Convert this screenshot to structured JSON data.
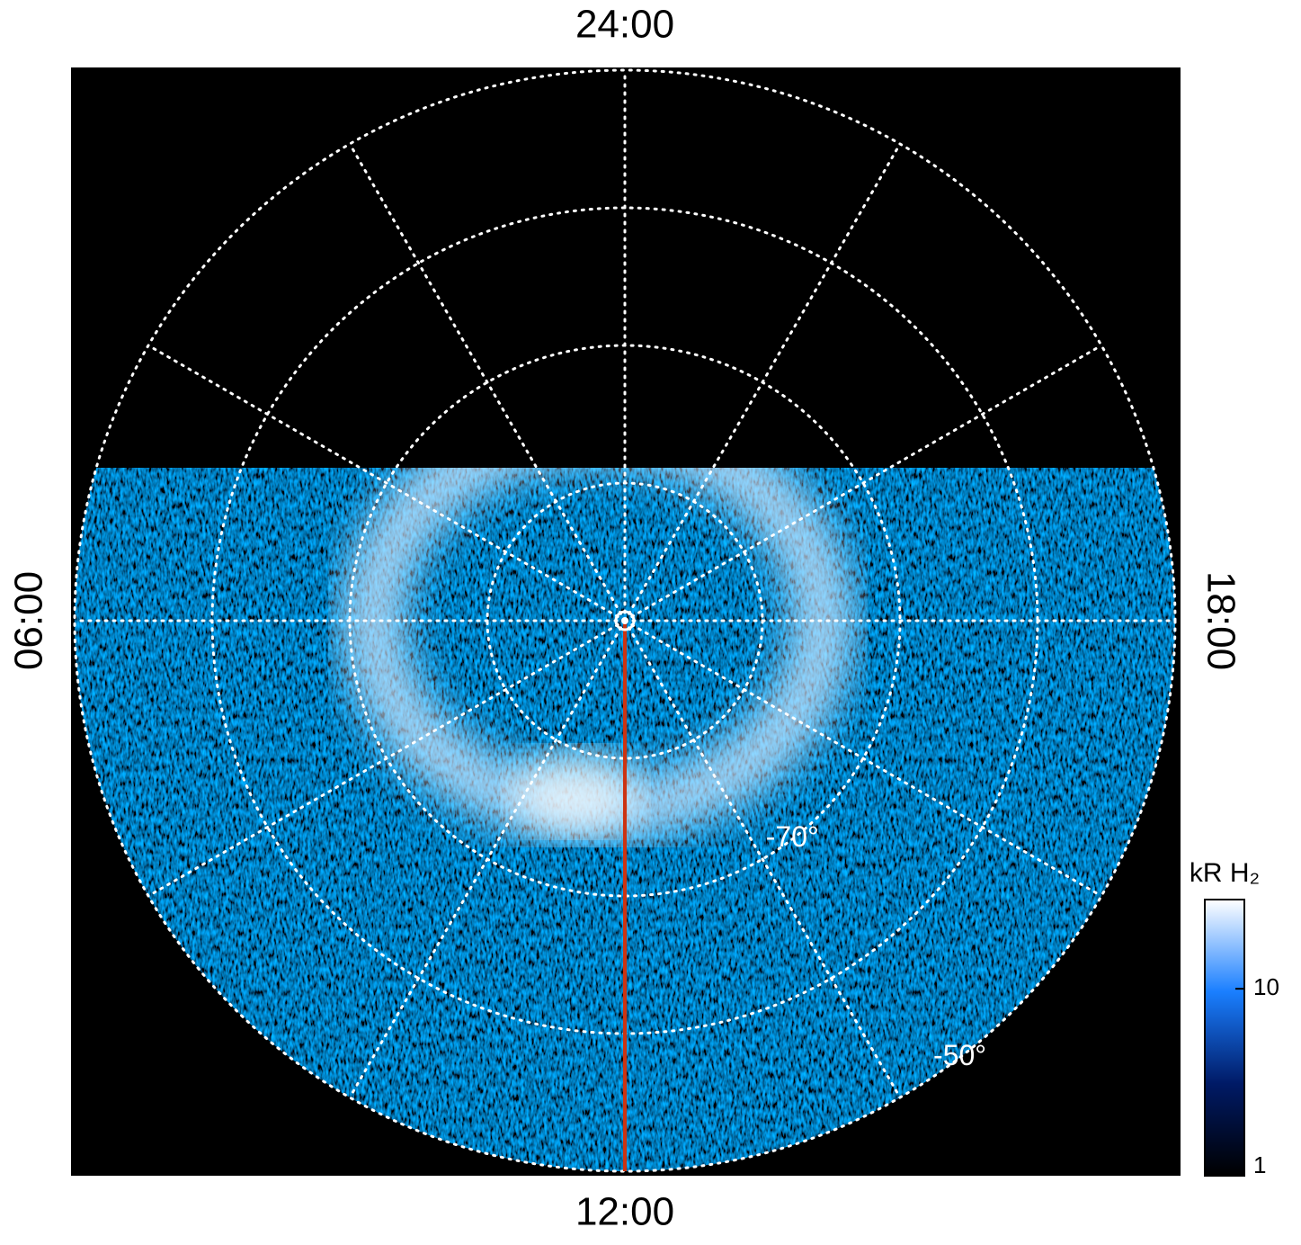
{
  "chart_data": {
    "type": "polar-image",
    "hour_labels": [
      {
        "value": 24,
        "label": "24:00"
      },
      {
        "value": 6,
        "label": "06:00"
      },
      {
        "value": 12,
        "label": "12:00"
      },
      {
        "value": 18,
        "label": "18:00"
      }
    ],
    "lt_ticks": [
      0,
      2,
      4,
      6,
      8,
      10,
      12,
      14,
      16,
      18,
      20,
      22
    ],
    "rlim": [
      -90,
      -50
    ],
    "rings": [
      -80,
      -70,
      -60,
      -50
    ],
    "ring_labels": [
      {
        "value": -70,
        "label": "-70°"
      },
      {
        "value": -50,
        "label": "-50°"
      }
    ],
    "meridian_lt": 12,
    "meridian_color": "#cc3311",
    "grid_color": "#ffffff",
    "colormap": [
      "#000000",
      "#001a66",
      "#1a7fff",
      "#ffffff"
    ],
    "colorbar": {
      "label": "kR H₂",
      "log": true,
      "clim": [
        1,
        30
      ],
      "ticks": [
        1,
        10
      ]
    }
  }
}
